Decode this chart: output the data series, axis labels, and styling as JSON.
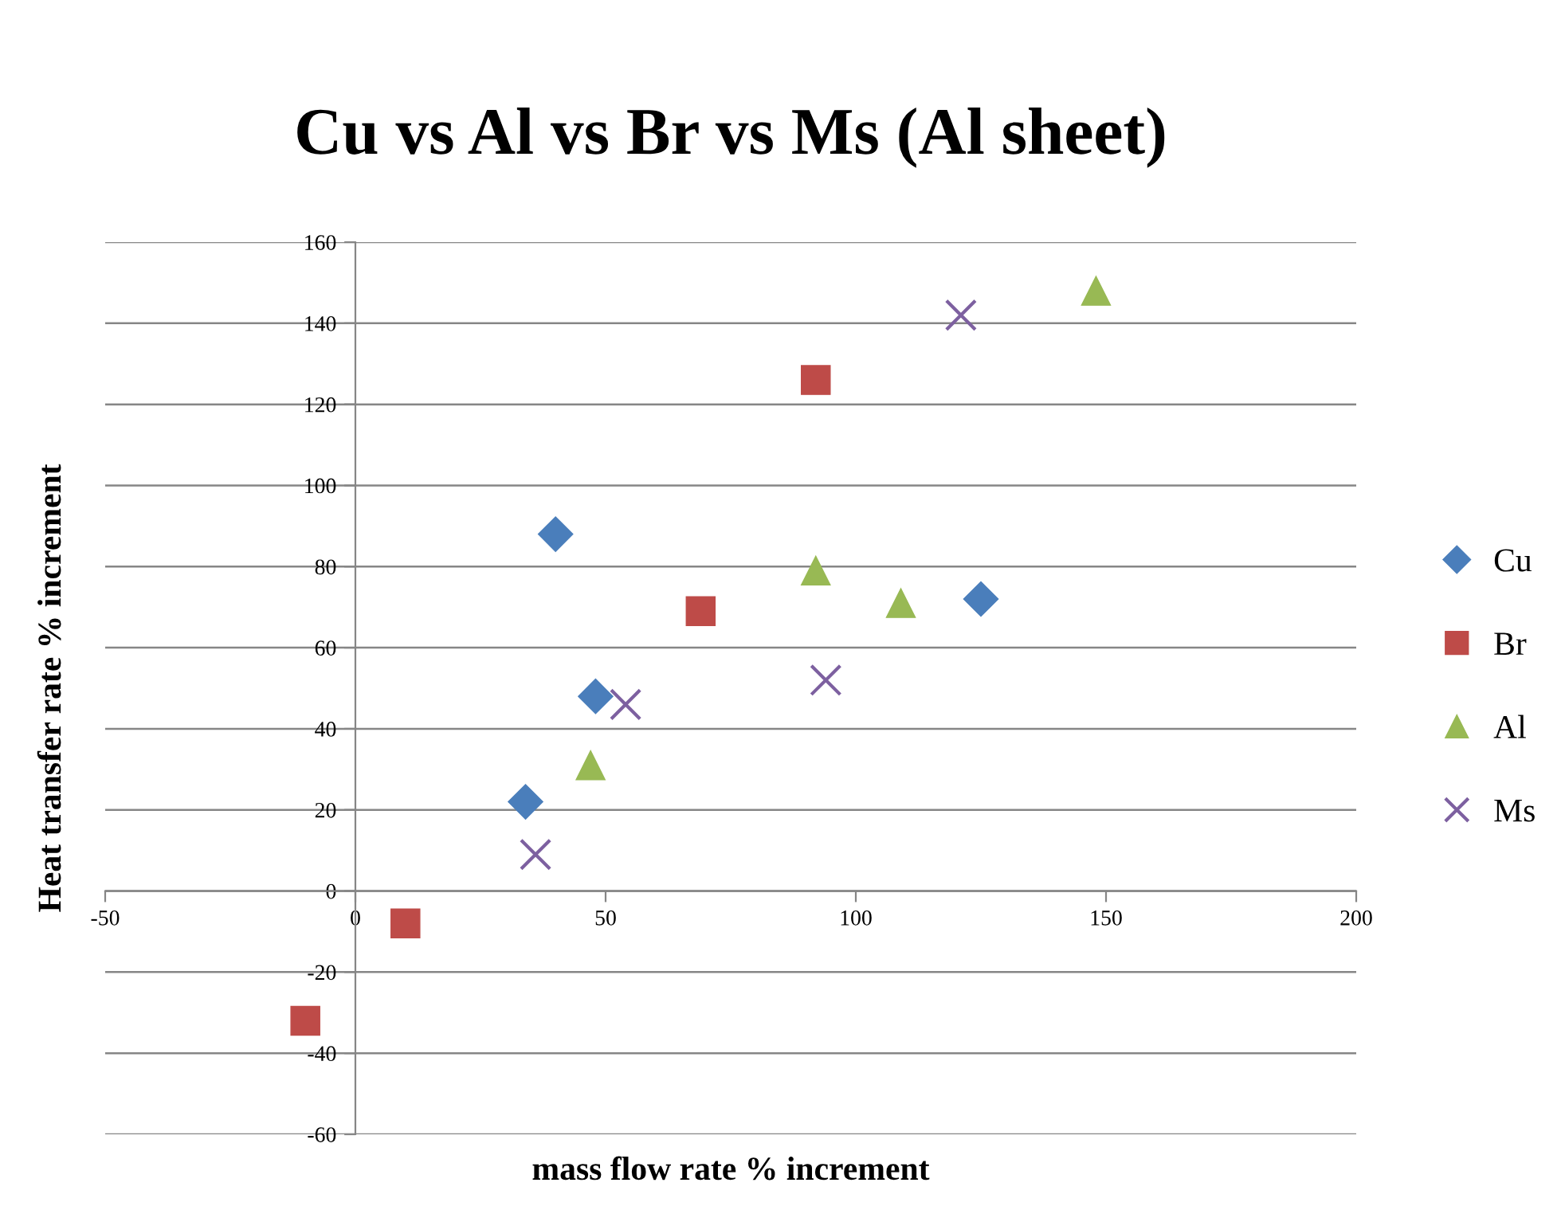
{
  "chart_data": {
    "type": "scatter",
    "title": "Cu vs Al vs Br vs Ms (Al sheet)",
    "xlabel": "mass flow rate % increment",
    "ylabel": "Heat transfer rate % increment",
    "xlim": [
      -50,
      200
    ],
    "xticks": [
      -50,
      0,
      50,
      100,
      150,
      200
    ],
    "ylim": [
      -60,
      160
    ],
    "yticks": [
      -60,
      -40,
      -20,
      0,
      20,
      40,
      60,
      80,
      100,
      120,
      140,
      160
    ],
    "grid": "y",
    "legend": "right",
    "series": [
      {
        "name": "Cu",
        "color": "#4a7ebb",
        "marker": "diamond",
        "x": [
          40,
          48,
          34,
          125
        ],
        "values": [
          88,
          48,
          22,
          72
        ]
      },
      {
        "name": "Br",
        "color": "#be4b48",
        "marker": "square",
        "x": [
          92,
          69,
          10,
          -10
        ],
        "values": [
          126,
          69,
          -8,
          -32
        ]
      },
      {
        "name": "Al",
        "color": "#98b954",
        "marker": "triangle",
        "x": [
          148,
          92,
          109,
          47
        ],
        "values": [
          148,
          79,
          71,
          31
        ]
      },
      {
        "name": "Ms",
        "color": "#7d60a0",
        "marker": "cross",
        "x": [
          121,
          94,
          54,
          36
        ],
        "values": [
          142,
          52,
          46,
          9
        ]
      }
    ]
  }
}
